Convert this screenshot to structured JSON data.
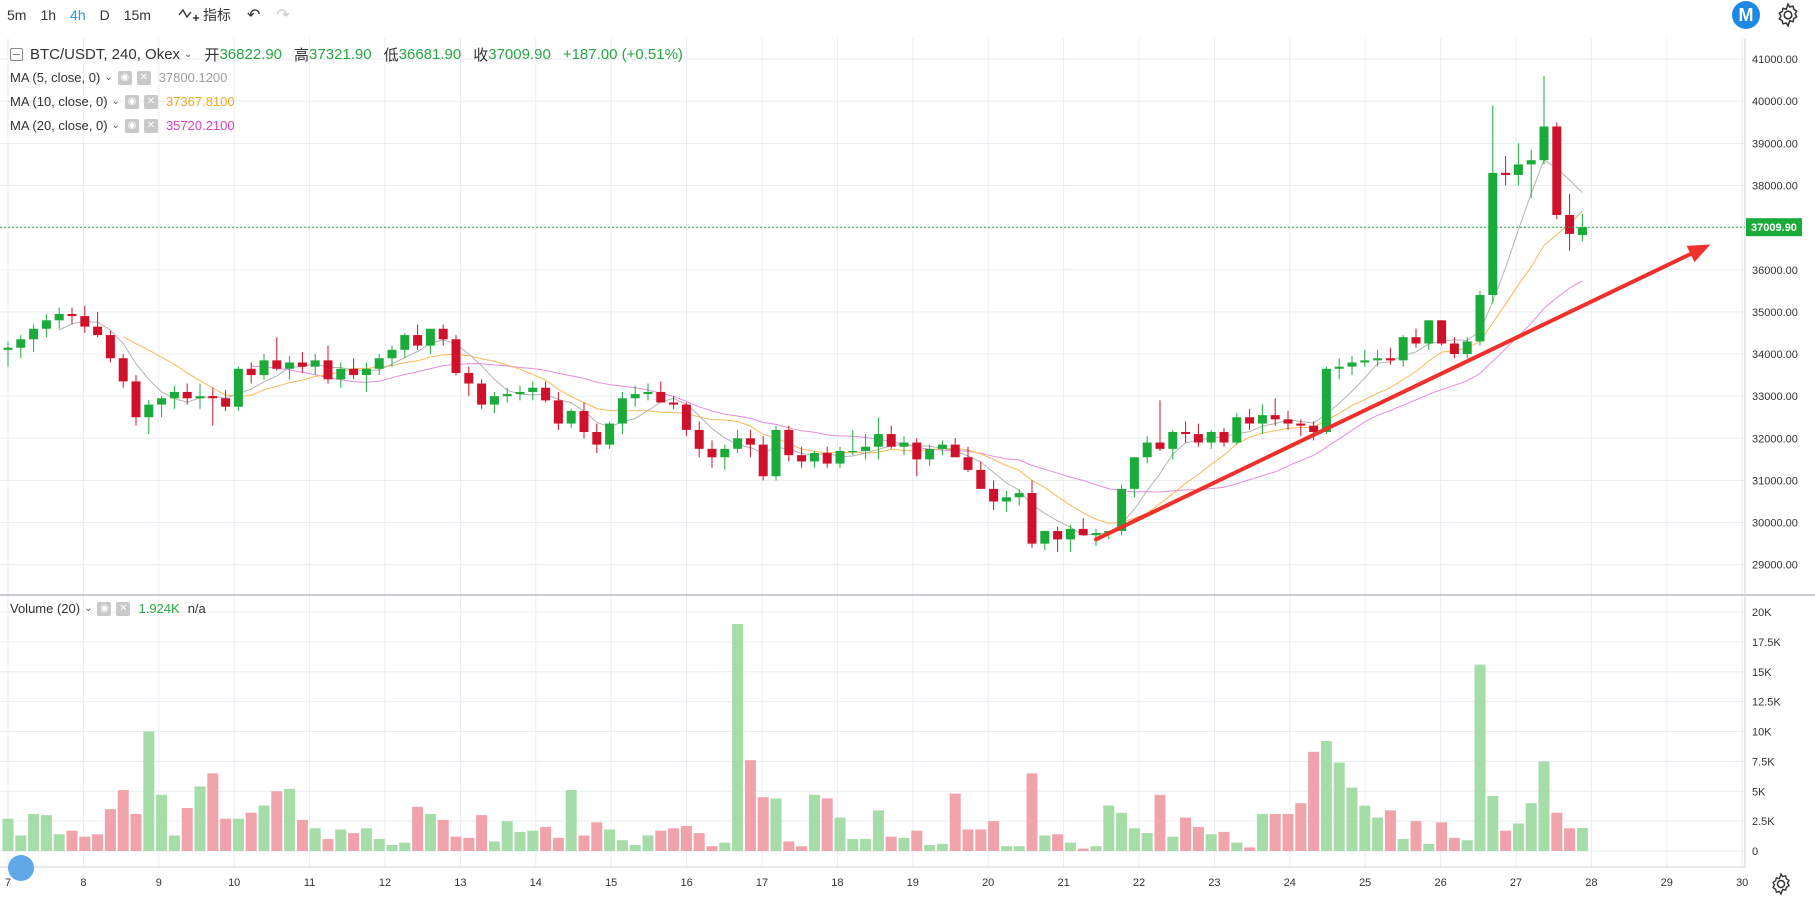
{
  "toolbar": {
    "timeframes": [
      "5m",
      "1h",
      "4h",
      "D",
      "15m"
    ],
    "active_timeframe": "4h",
    "indicator_label": "指标",
    "undo_icon": "undo-icon",
    "redo_icon": "redo-icon"
  },
  "logo_letter": "M",
  "legend": {
    "symbol": "BTC/USDT, 240, Okex",
    "open_label": "开",
    "open": "36822.90",
    "high_label": "高",
    "high": "37321.90",
    "low_label": "低",
    "low": "36681.90",
    "close_label": "收",
    "close": "37009.90",
    "change": "+187.00 (+0.51%)"
  },
  "ma_legend": [
    {
      "label": "MA (5, close, 0)",
      "value": "37800.1200",
      "color": "#9e9e9e"
    },
    {
      "label": "MA (10, close, 0)",
      "value": "37367.8100",
      "color": "#f5a623"
    },
    {
      "label": "MA (20, close, 0)",
      "value": "35720.2100",
      "color": "#e040c0"
    }
  ],
  "volume_legend": {
    "label": "Volume (20)",
    "value": "1.924K",
    "extra": "n/a"
  },
  "last_price_label": "37009.90",
  "colors": {
    "up": "#1bab3a",
    "down": "#d0112b",
    "up_vol": "#a5dca8",
    "down_vol": "#f0a3ab",
    "grid": "#e8edf2",
    "arrow": "#f0302a"
  },
  "chart_data": {
    "type": "candlestick",
    "price_axis": {
      "min": 29000,
      "max": 41000,
      "ticks": [
        "29000.00",
        "30000.00",
        "31000.00",
        "32000.00",
        "33000.00",
        "34000.00",
        "35000.00",
        "36000.00",
        "37000.00",
        "38000.00",
        "39000.00",
        "40000.00",
        "41000.00"
      ]
    },
    "volume_axis": {
      "min": 0,
      "max": 20000,
      "ticks": [
        "0",
        "2.5K",
        "5K",
        "7.5K",
        "10K",
        "12.5K",
        "15K",
        "17.5K",
        "20K"
      ]
    },
    "x_ticks": [
      "7",
      "8",
      "9",
      "10",
      "11",
      "12",
      "13",
      "14",
      "15",
      "16",
      "17",
      "18",
      "19",
      "20",
      "21",
      "22",
      "23",
      "24",
      "25",
      "26",
      "27",
      "28",
      "29",
      "30"
    ],
    "candles": [
      [
        34100,
        34300,
        33700,
        34150,
        2700
      ],
      [
        34150,
        34450,
        33900,
        34350,
        1300
      ],
      [
        34350,
        34700,
        34050,
        34600,
        3100
      ],
      [
        34600,
        34950,
        34400,
        34800,
        3000
      ],
      [
        34800,
        35100,
        34600,
        34950,
        1400
      ],
      [
        34950,
        35100,
        34700,
        34900,
        1700
      ],
      [
        34900,
        35150,
        34500,
        34650,
        1200
      ],
      [
        34650,
        35000,
        34400,
        34450,
        1400
      ],
      [
        34450,
        34550,
        33800,
        33900,
        3500
      ],
      [
        33900,
        34000,
        33200,
        33350,
        5100
      ],
      [
        33350,
        33500,
        32300,
        32500,
        3100
      ],
      [
        32500,
        32900,
        32100,
        32800,
        10000
      ],
      [
        32800,
        33000,
        32500,
        32950,
        4700
      ],
      [
        32950,
        33250,
        32700,
        33100,
        1300
      ],
      [
        33100,
        33300,
        32800,
        32950,
        3600
      ],
      [
        32950,
        33300,
        32700,
        33000,
        5400
      ],
      [
        33000,
        33200,
        32300,
        32950,
        6500
      ],
      [
        32950,
        33150,
        32650,
        32750,
        2700
      ],
      [
        32750,
        33700,
        32650,
        33650,
        2700
      ],
      [
        33650,
        33800,
        33300,
        33500,
        3200
      ],
      [
        33500,
        34000,
        33400,
        33850,
        3800
      ],
      [
        33850,
        34400,
        33600,
        33650,
        5000
      ],
      [
        33650,
        33950,
        33400,
        33800,
        5200
      ],
      [
        33800,
        34050,
        33550,
        33700,
        2600
      ],
      [
        33700,
        34000,
        33500,
        33850,
        1900
      ],
      [
        33850,
        34200,
        33300,
        33400,
        1000
      ],
      [
        33400,
        33800,
        33200,
        33650,
        1800
      ],
      [
        33650,
        33900,
        33400,
        33500,
        1500
      ],
      [
        33500,
        33800,
        33100,
        33650,
        1900
      ],
      [
        33650,
        34000,
        33500,
        33900,
        1000
      ],
      [
        33900,
        34200,
        33700,
        34100,
        500
      ],
      [
        34100,
        34500,
        33900,
        34450,
        700
      ],
      [
        34450,
        34700,
        34100,
        34200,
        3700
      ],
      [
        34200,
        34550,
        34000,
        34600,
        3100
      ],
      [
        34600,
        34700,
        34200,
        34350,
        2600
      ],
      [
        34350,
        34450,
        33500,
        33550,
        1200
      ],
      [
        33550,
        33700,
        33000,
        33300,
        1100
      ],
      [
        33300,
        33400,
        32700,
        32800,
        3000
      ],
      [
        32800,
        33100,
        32600,
        33000,
        800
      ],
      [
        33000,
        33200,
        32850,
        33050,
        2500
      ],
      [
        33050,
        33250,
        32900,
        33100,
        1600
      ],
      [
        33100,
        33350,
        32900,
        33200,
        1700
      ],
      [
        33200,
        33350,
        32850,
        32900,
        2000
      ],
      [
        32900,
        33100,
        32200,
        32350,
        1100
      ],
      [
        32350,
        32700,
        32250,
        32650,
        5100
      ],
      [
        32650,
        32850,
        32000,
        32150,
        1300
      ],
      [
        32150,
        32350,
        31650,
        31850,
        2400
      ],
      [
        31850,
        32400,
        31750,
        32350,
        1800
      ],
      [
        32350,
        33100,
        32100,
        32950,
        900
      ],
      [
        32950,
        33250,
        32750,
        33050,
        500
      ],
      [
        33050,
        33300,
        32900,
        33100,
        1300
      ],
      [
        33100,
        33350,
        32850,
        32850,
        1700
      ],
      [
        32850,
        33000,
        32700,
        32800,
        1900
      ],
      [
        32800,
        32850,
        32050,
        32200,
        2100
      ],
      [
        32200,
        32400,
        31550,
        31750,
        1500
      ],
      [
        31750,
        31950,
        31300,
        31550,
        400
      ],
      [
        31550,
        31850,
        31250,
        31750,
        700
      ],
      [
        31750,
        32200,
        31650,
        32000,
        19000
      ],
      [
        32000,
        32200,
        31550,
        31850,
        7600
      ],
      [
        31850,
        32050,
        31000,
        31100,
        4500
      ],
      [
        31100,
        32300,
        31000,
        32200,
        4400
      ],
      [
        32200,
        32300,
        31450,
        31600,
        800
      ],
      [
        31600,
        31800,
        31300,
        31450,
        400
      ],
      [
        31450,
        31700,
        31300,
        31650,
        4700
      ],
      [
        31650,
        31800,
        31300,
        31400,
        4400
      ],
      [
        31400,
        31800,
        31300,
        31700,
        2800
      ],
      [
        31700,
        32200,
        31600,
        31700,
        1000
      ],
      [
        31700,
        32100,
        31500,
        31800,
        1000
      ],
      [
        31800,
        32500,
        31500,
        32100,
        3400
      ],
      [
        32100,
        32300,
        31750,
        31800,
        1200
      ],
      [
        31800,
        32050,
        31600,
        31900,
        1100
      ],
      [
        31900,
        32000,
        31100,
        31500,
        1700
      ],
      [
        31500,
        31850,
        31350,
        31750,
        500
      ],
      [
        31750,
        31950,
        31600,
        31850,
        600
      ],
      [
        31850,
        32000,
        31550,
        31550,
        4800
      ],
      [
        31550,
        31800,
        31200,
        31250,
        1800
      ],
      [
        31250,
        31450,
        30800,
        30800,
        1800
      ],
      [
        30800,
        31000,
        30300,
        30500,
        2500
      ],
      [
        30500,
        30750,
        30250,
        30600,
        400
      ],
      [
        30600,
        30800,
        30400,
        30700,
        400
      ],
      [
        30700,
        31000,
        29400,
        29500,
        6500
      ],
      [
        29500,
        29800,
        29350,
        29800,
        1300
      ],
      [
        29800,
        29900,
        29300,
        29600,
        1400
      ],
      [
        29600,
        29950,
        29300,
        29850,
        700
      ],
      [
        29850,
        30100,
        29700,
        29700,
        200
      ],
      [
        29700,
        29850,
        29450,
        29750,
        400
      ],
      [
        29750,
        29800,
        29600,
        29800,
        3800
      ],
      [
        29800,
        30900,
        29700,
        30800,
        3200
      ],
      [
        30800,
        31550,
        30600,
        31550,
        1900
      ],
      [
        31550,
        32050,
        31400,
        31900,
        1500
      ],
      [
        31900,
        32900,
        31700,
        31750,
        4700
      ],
      [
        31750,
        32200,
        31500,
        32150,
        1200
      ],
      [
        32150,
        32400,
        31900,
        32100,
        2800
      ],
      [
        32100,
        32350,
        31800,
        31900,
        2000
      ],
      [
        31900,
        32200,
        31750,
        32150,
        1400
      ],
      [
        32150,
        32250,
        31800,
        31900,
        1600
      ],
      [
        31900,
        32600,
        31850,
        32500,
        700
      ],
      [
        32500,
        32700,
        32200,
        32350,
        300
      ],
      [
        32350,
        32800,
        32100,
        32550,
        3100
      ],
      [
        32550,
        32950,
        32300,
        32450,
        3100
      ],
      [
        32450,
        32650,
        32200,
        32350,
        3100
      ],
      [
        32350,
        32450,
        32050,
        32300,
        4000
      ],
      [
        32300,
        32400,
        31950,
        32150,
        8300
      ],
      [
        32150,
        33700,
        32100,
        33650,
        9200
      ],
      [
        33650,
        33900,
        33400,
        33700,
        7400
      ],
      [
        33700,
        33950,
        33500,
        33800,
        5300
      ],
      [
        33800,
        34100,
        33700,
        33850,
        3800
      ],
      [
        33850,
        34100,
        33700,
        33900,
        2800
      ],
      [
        33900,
        34150,
        33750,
        33850,
        3400
      ],
      [
        33850,
        34450,
        33700,
        34400,
        1000
      ],
      [
        34400,
        34600,
        34150,
        34250,
        2500
      ],
      [
        34250,
        34800,
        34100,
        34800,
        600
      ],
      [
        34800,
        34800,
        34200,
        34250,
        2400
      ],
      [
        34250,
        34400,
        33900,
        34000,
        1100
      ],
      [
        34000,
        34400,
        33900,
        34300,
        900
      ],
      [
        34300,
        35500,
        34200,
        35400,
        15600
      ],
      [
        35400,
        39900,
        35200,
        38300,
        4600
      ],
      [
        38300,
        38700,
        38000,
        38250,
        1700
      ],
      [
        38250,
        39000,
        38000,
        38500,
        2300
      ],
      [
        38500,
        38850,
        37700,
        38600,
        4000
      ],
      [
        38600,
        40600,
        38500,
        39400,
        7500
      ],
      [
        39400,
        39500,
        37200,
        37300,
        3200
      ],
      [
        37300,
        37800,
        36450,
        36850,
        1900
      ],
      [
        36822.9,
        37321.9,
        36681.9,
        37009.9,
        1924
      ]
    ],
    "annotation": {
      "type": "arrow",
      "from": {
        "candle": 85,
        "price": 29600
      },
      "to": {
        "candle": 133,
        "price": 36600
      }
    }
  }
}
